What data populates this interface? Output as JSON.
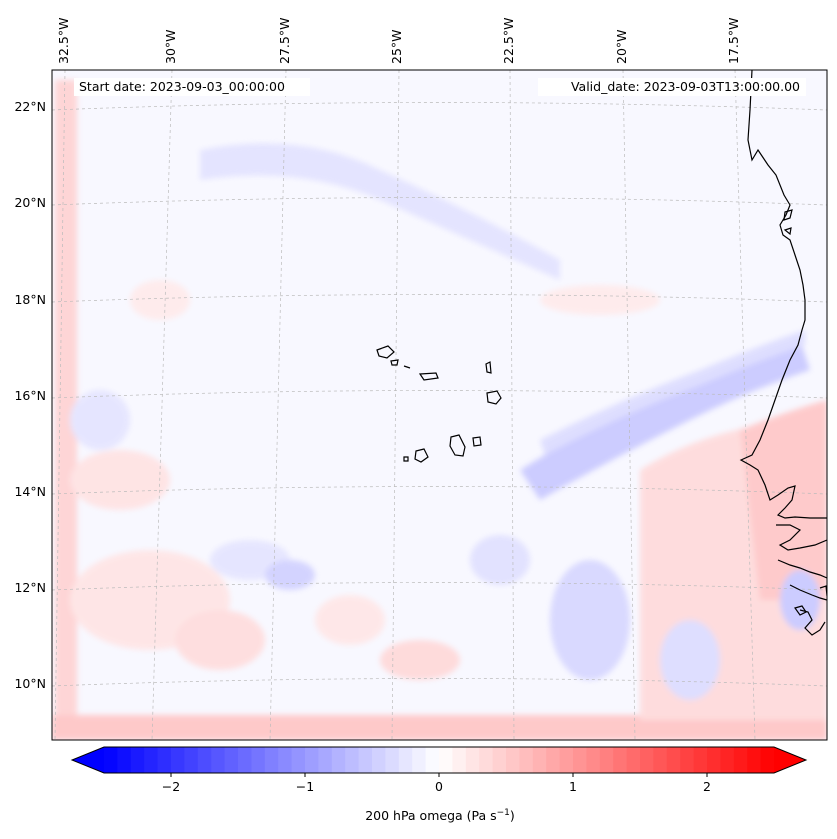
{
  "annotations": {
    "start_date": "Start date: 2023-09-03_00:00:00",
    "valid_date": "Valid_date: 2023-09-03T13:00:00.00"
  },
  "map": {
    "lon_labels": [
      "32.5°W",
      "30°W",
      "27.5°W",
      "25°W",
      "22.5°W",
      "20°W",
      "17.5°W"
    ],
    "lat_labels": [
      "22°N",
      "20°N",
      "18°N",
      "16°N",
      "14°N",
      "12°N",
      "10°N"
    ],
    "lon_range": [
      -33.0,
      -15.9
    ],
    "lat_range": [
      8.9,
      22.8
    ]
  },
  "colorbar": {
    "ticks": [
      -2,
      -1,
      0,
      1,
      2
    ],
    "tick_labels": [
      "−2",
      "−1",
      "0",
      "1",
      "2"
    ],
    "vmin": -2.5,
    "vmax": 2.5,
    "label_prefix": "200 hPa omega (Pa s",
    "label_sup": "−1",
    "label_suffix": ")",
    "cmap_low": "#0000ff",
    "cmap_mid": "#ffffff",
    "cmap_high": "#ff0000"
  }
}
